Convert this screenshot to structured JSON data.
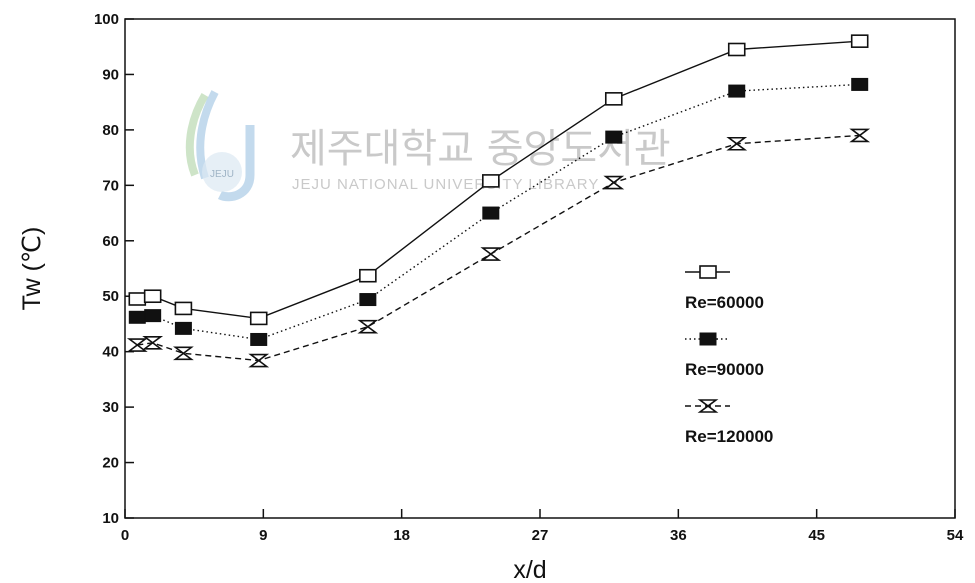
{
  "watermark": {
    "korean": "제주대학교 중앙도서관",
    "english": "JEJU NATIONAL UNIVERSITY LIBRARY",
    "logo_text": "JEJU"
  },
  "chart_data": {
    "type": "line",
    "xlabel": "x/d",
    "ylabel": "Tw (℃)",
    "xlim": [
      0,
      54
    ],
    "ylim": [
      10,
      100
    ],
    "xticks": [
      0,
      9,
      18,
      27,
      36,
      45,
      54
    ],
    "yticks": [
      10,
      20,
      30,
      40,
      50,
      60,
      70,
      80,
      90,
      100
    ],
    "grid": false,
    "legend_position": "right",
    "series": [
      {
        "name": "Re=60000",
        "marker": "open-square",
        "line": "solid",
        "x": [
          0.8,
          1.8,
          3.8,
          8.7,
          15.8,
          23.8,
          31.8,
          39.8,
          47.8
        ],
        "y": [
          49.5,
          50.0,
          47.8,
          46.0,
          53.7,
          70.8,
          85.6,
          94.5,
          96.0
        ]
      },
      {
        "name": "Re=90000",
        "marker": "filled-square",
        "line": "dotted",
        "x": [
          0.8,
          1.8,
          3.8,
          8.7,
          15.8,
          23.8,
          31.8,
          39.8,
          47.8
        ],
        "y": [
          46.2,
          46.5,
          44.2,
          42.2,
          49.4,
          65.0,
          78.7,
          87.0,
          88.2
        ]
      },
      {
        "name": "Re=120000",
        "marker": "hourglass",
        "line": "dashed",
        "x": [
          0.8,
          1.8,
          3.8,
          8.7,
          15.8,
          23.8,
          31.8,
          39.8,
          47.8
        ],
        "y": [
          41.2,
          41.6,
          39.7,
          38.4,
          44.5,
          57.6,
          70.5,
          77.5,
          79.0
        ]
      }
    ]
  }
}
